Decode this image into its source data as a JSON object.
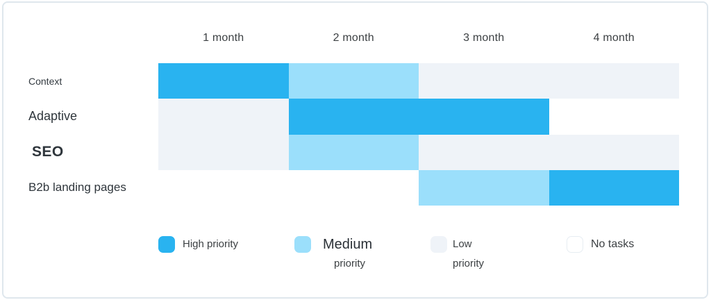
{
  "chart_data": {
    "type": "heatmap",
    "title": "",
    "columns": [
      "1 month",
      "2 month",
      "3 month",
      "4 month"
    ],
    "rows": [
      {
        "label": "Context",
        "cells": [
          "high",
          "medium",
          "low",
          "low"
        ]
      },
      {
        "label": "Adaptive",
        "cells": [
          "low",
          "high",
          "high",
          "none"
        ]
      },
      {
        "label": "SEO",
        "cells": [
          "low",
          "medium",
          "low",
          "low"
        ]
      },
      {
        "label": "B2b landing pages",
        "cells": [
          "none",
          "none",
          "medium",
          "high"
        ]
      }
    ],
    "legend": [
      {
        "key": "high",
        "lines": [
          "High priority"
        ]
      },
      {
        "key": "medium",
        "lines": [
          "Medium",
          "priority"
        ]
      },
      {
        "key": "low",
        "lines": [
          "Low",
          "priority"
        ]
      },
      {
        "key": "none",
        "lines": [
          "No tasks"
        ]
      }
    ],
    "colors": {
      "high": "#29B3F0",
      "medium": "#9BDFFB",
      "low": "#EFF3F8",
      "none": "#FFFFFF"
    },
    "layout": {
      "grid": "off",
      "legend_position": "bottom",
      "axis": "months across top, tasks down left"
    }
  }
}
